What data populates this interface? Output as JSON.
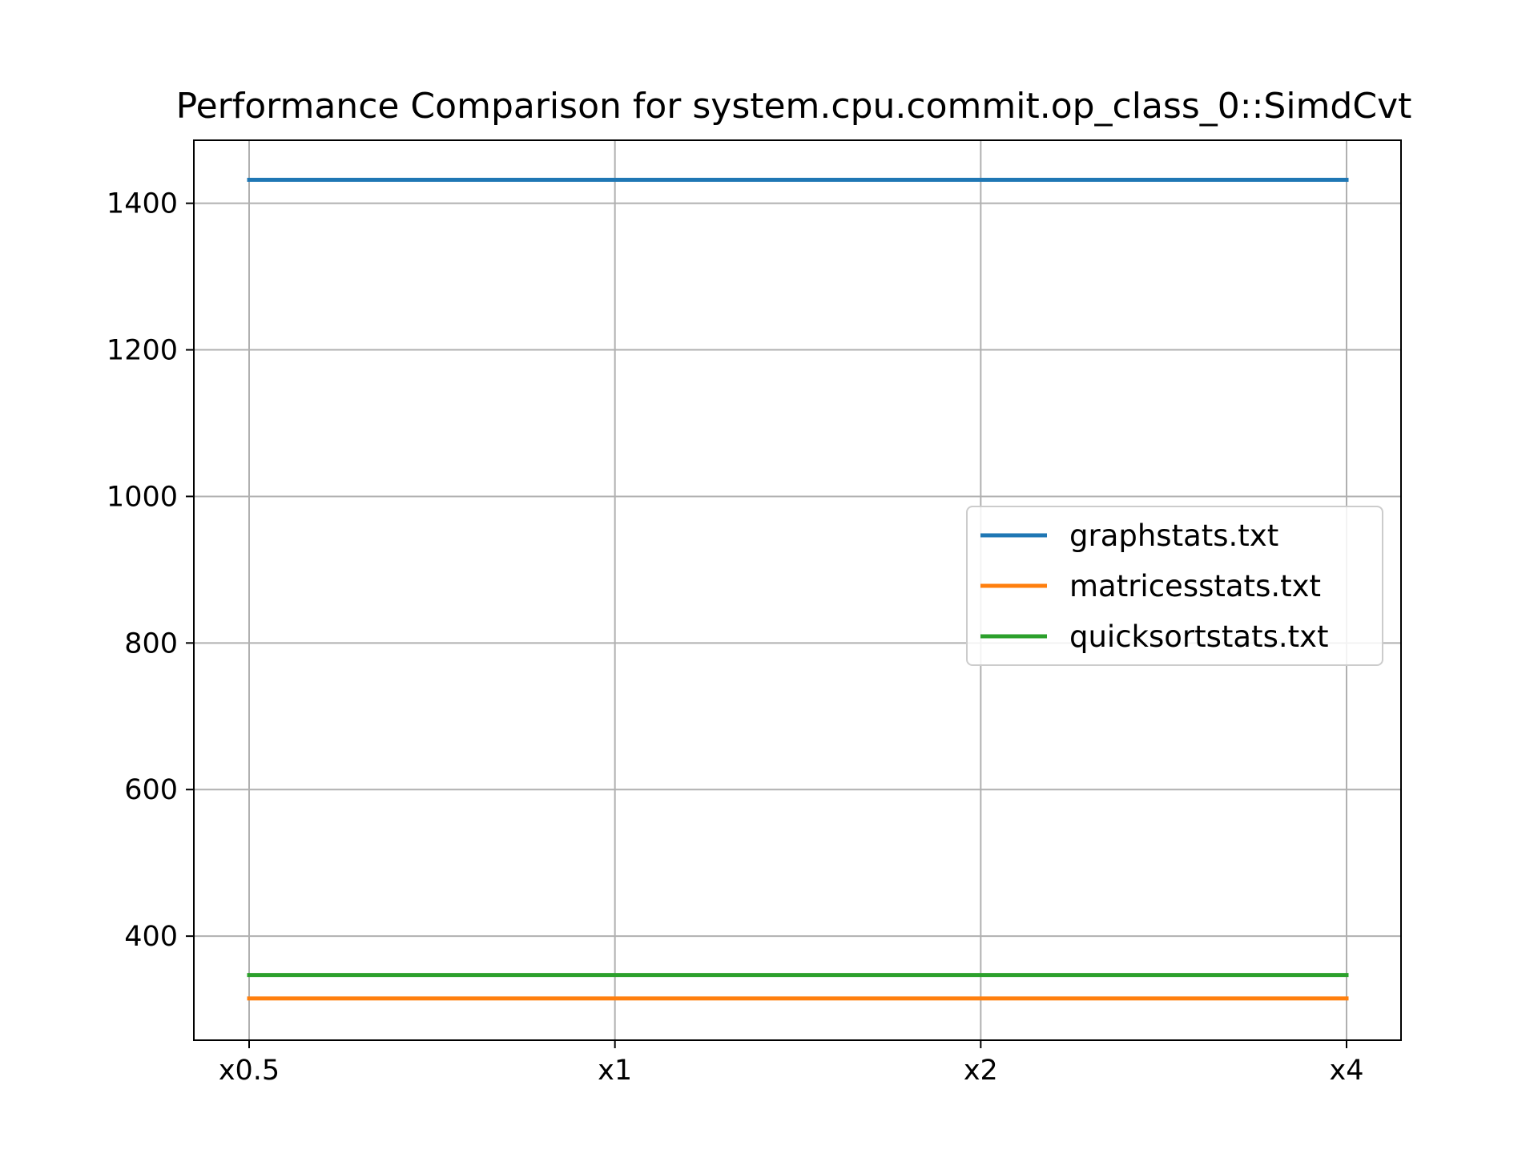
{
  "chart_data": {
    "type": "line",
    "title": "Performance Comparison for system.cpu.commit.op_class_0::SimdCvt",
    "xlabel": "",
    "ylabel": "",
    "categories": [
      "x0.5",
      "x1",
      "x2",
      "x4"
    ],
    "y_ticks": [
      400,
      600,
      800,
      1000,
      1200,
      1400
    ],
    "ylim": [
      258,
      1486
    ],
    "grid": true,
    "legend_position": "center-right",
    "series": [
      {
        "name": "graphstats.txt",
        "color": "#1f77b4",
        "values": [
          1432,
          1432,
          1432,
          1432
        ]
      },
      {
        "name": "matricesstats.txt",
        "color": "#ff7f0e",
        "values": [
          315,
          315,
          315,
          315
        ]
      },
      {
        "name": "quicksortstats.txt",
        "color": "#2ca02c",
        "values": [
          347,
          347,
          347,
          347
        ]
      }
    ]
  }
}
